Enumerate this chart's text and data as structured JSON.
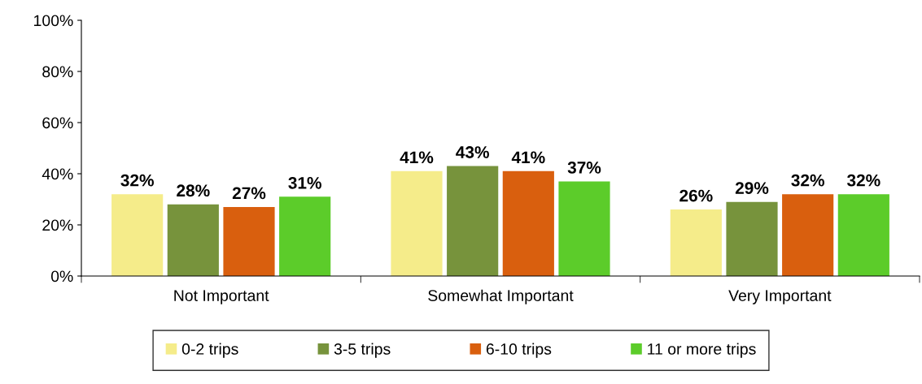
{
  "chart_data": {
    "type": "bar",
    "categories": [
      "Not Important",
      "Somewhat Important",
      "Very Important"
    ],
    "series": [
      {
        "name": "0-2 trips",
        "color": "#f5ec8a",
        "values": [
          32,
          41,
          26
        ],
        "value_labels": [
          "32%",
          "41%",
          "26%"
        ]
      },
      {
        "name": "3-5 trips",
        "color": "#77933c",
        "values": [
          28,
          43,
          29
        ],
        "value_labels": [
          "28%",
          "43%",
          "29%"
        ]
      },
      {
        "name": "6-10 trips",
        "color": "#d95f0e",
        "values": [
          27,
          41,
          32
        ],
        "value_labels": [
          "27%",
          "41%",
          "32%"
        ]
      },
      {
        "name": "11 or more trips",
        "color": "#5ccc2a",
        "values": [
          31,
          37,
          32
        ],
        "value_labels": [
          "31%",
          "37%",
          "32%"
        ]
      }
    ],
    "ylim": [
      0,
      100
    ],
    "yticks": [
      {
        "value": 0,
        "label": "0%"
      },
      {
        "value": 20,
        "label": "20%"
      },
      {
        "value": 40,
        "label": "40%"
      },
      {
        "value": 60,
        "label": "60%"
      },
      {
        "value": 80,
        "label": "80%"
      },
      {
        "value": 100,
        "label": "100%"
      }
    ],
    "grid": false,
    "legend": "bottom"
  }
}
